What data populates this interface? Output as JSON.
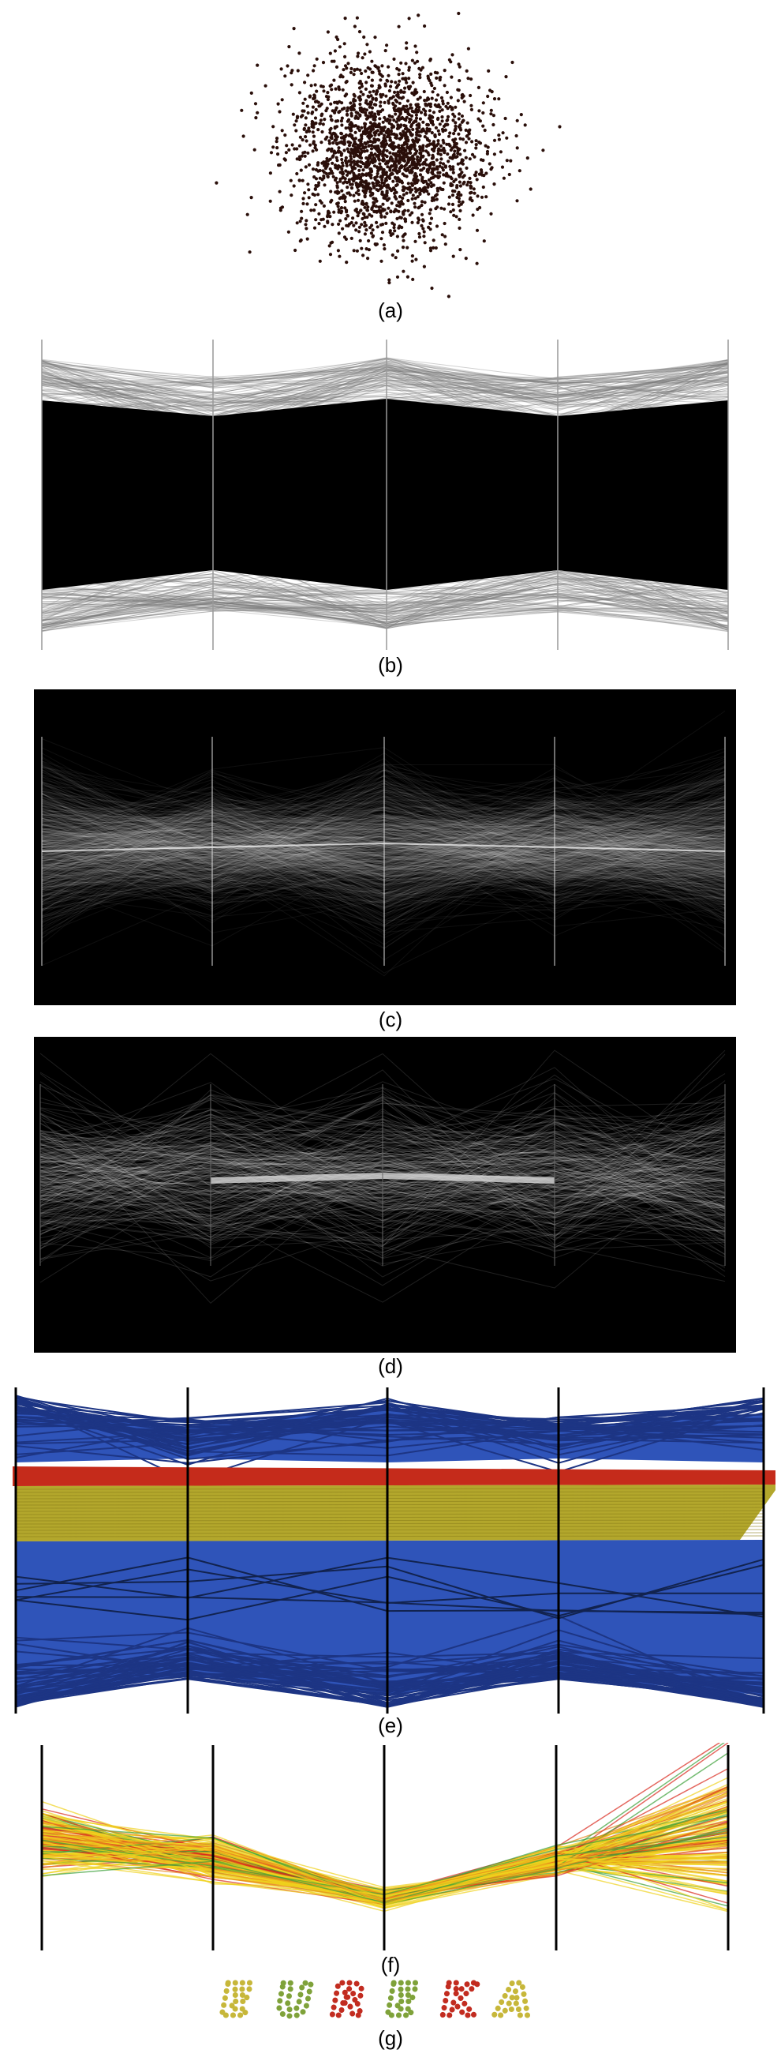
{
  "figure": {
    "panels": [
      {
        "id": "a",
        "caption": "(a)",
        "kind": "scatter-cloud"
      },
      {
        "id": "b",
        "caption": "(b)",
        "kind": "parallel-coordinates-opaque"
      },
      {
        "id": "c",
        "caption": "(c)",
        "kind": "parallel-coordinates-density"
      },
      {
        "id": "d",
        "caption": "(d)",
        "kind": "parallel-coordinates-density-faint"
      },
      {
        "id": "e",
        "caption": "(e)",
        "kind": "parallel-coordinates-clustered"
      },
      {
        "id": "f",
        "caption": "(f)",
        "kind": "parallel-coordinates-highlighted"
      },
      {
        "id": "g",
        "caption": "(g)",
        "kind": "lettering"
      }
    ],
    "axis_count": 5,
    "lettering_text": "EUREKA",
    "colors": {
      "points": "#2a0f0a",
      "blue_cluster": "#2f54b9",
      "red_band": "#c52b1b",
      "yellow_band": "#b3a72c",
      "green_line": "#3aa037",
      "yellow_line": "#f0d21c",
      "red_line": "#d8281c",
      "orange_line": "#e8861c",
      "axis_line": "#000000",
      "letter_green": "#7fa23a",
      "letter_red": "#c22c20",
      "letter_yellow": "#c7b73a"
    }
  }
}
